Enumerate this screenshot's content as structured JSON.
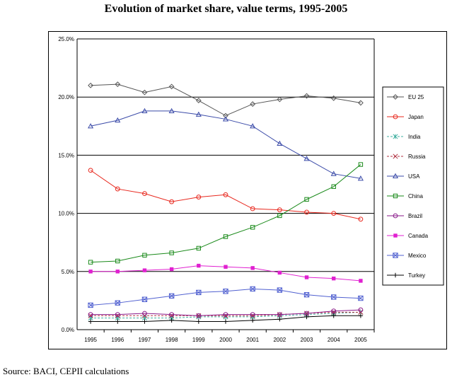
{
  "title": "Evolution of market share, value terms, 1995-2005",
  "source": "Source: BACI, CEPII calculations",
  "chart_data": {
    "type": "line",
    "title": "Evolution of market share, value terms, 1995-2005",
    "xlabel": "",
    "ylabel": "",
    "x": [
      "1995",
      "1996",
      "1997",
      "1998",
      "1999",
      "2000",
      "2001",
      "2002",
      "2003",
      "2004",
      "2005"
    ],
    "ylim": [
      0,
      25
    ],
    "yticks": [
      "0.0%",
      "5.0%",
      "10.0%",
      "15.0%",
      "20.0%",
      "25.0%"
    ],
    "grid": "horizontal",
    "legend": "right",
    "series": [
      {
        "name": "EU 25",
        "color": "#555555",
        "marker": "diamond",
        "dash": "solid",
        "values": [
          21.0,
          21.1,
          20.4,
          20.9,
          19.7,
          18.4,
          19.4,
          19.8,
          20.1,
          19.9,
          19.5
        ]
      },
      {
        "name": "Japan",
        "color": "#e8281e",
        "marker": "circle",
        "dash": "solid",
        "values": [
          13.7,
          12.1,
          11.7,
          11.0,
          11.4,
          11.6,
          10.4,
          10.3,
          10.1,
          10.0,
          9.5
        ]
      },
      {
        "name": "India",
        "color": "#40b0a0",
        "marker": "star",
        "dash": "dash",
        "values": [
          1.0,
          1.0,
          1.0,
          1.0,
          1.1,
          1.1,
          1.1,
          1.2,
          1.3,
          1.4,
          1.5
        ]
      },
      {
        "name": "Russia",
        "color": "#b03040",
        "marker": "x",
        "dash": "dash",
        "values": [
          1.2,
          1.2,
          1.2,
          1.2,
          1.2,
          1.2,
          1.2,
          1.3,
          1.4,
          1.5,
          1.5
        ]
      },
      {
        "name": "USA",
        "color": "#3a4aa8",
        "marker": "triangle",
        "dash": "solid",
        "values": [
          17.5,
          18.0,
          18.8,
          18.8,
          18.5,
          18.1,
          17.5,
          16.0,
          14.7,
          13.4,
          13.0
        ]
      },
      {
        "name": "China",
        "color": "#1a8a1a",
        "marker": "square",
        "dash": "solid",
        "values": [
          5.8,
          5.9,
          6.4,
          6.6,
          7.0,
          8.0,
          8.8,
          9.8,
          11.2,
          12.3,
          14.2
        ]
      },
      {
        "name": "Brazil",
        "color": "#8a1a8a",
        "marker": "circle",
        "dash": "solid",
        "values": [
          1.3,
          1.3,
          1.4,
          1.3,
          1.2,
          1.3,
          1.3,
          1.3,
          1.4,
          1.6,
          1.7
        ]
      },
      {
        "name": "Canada",
        "color": "#e020d0",
        "marker": "filledsquare",
        "dash": "solid",
        "values": [
          5.0,
          5.0,
          5.1,
          5.2,
          5.5,
          5.4,
          5.3,
          4.9,
          4.5,
          4.4,
          4.2
        ]
      },
      {
        "name": "Mexico",
        "color": "#5060d0",
        "marker": "boxx",
        "dash": "solid",
        "values": [
          2.1,
          2.3,
          2.6,
          2.9,
          3.2,
          3.3,
          3.5,
          3.4,
          3.0,
          2.8,
          2.7
        ]
      },
      {
        "name": "Turkey",
        "color": "#000000",
        "marker": "plus",
        "dash": "solid",
        "values": [
          0.7,
          0.7,
          0.7,
          0.8,
          0.7,
          0.7,
          0.8,
          0.9,
          1.1,
          1.2,
          1.2
        ]
      }
    ]
  }
}
